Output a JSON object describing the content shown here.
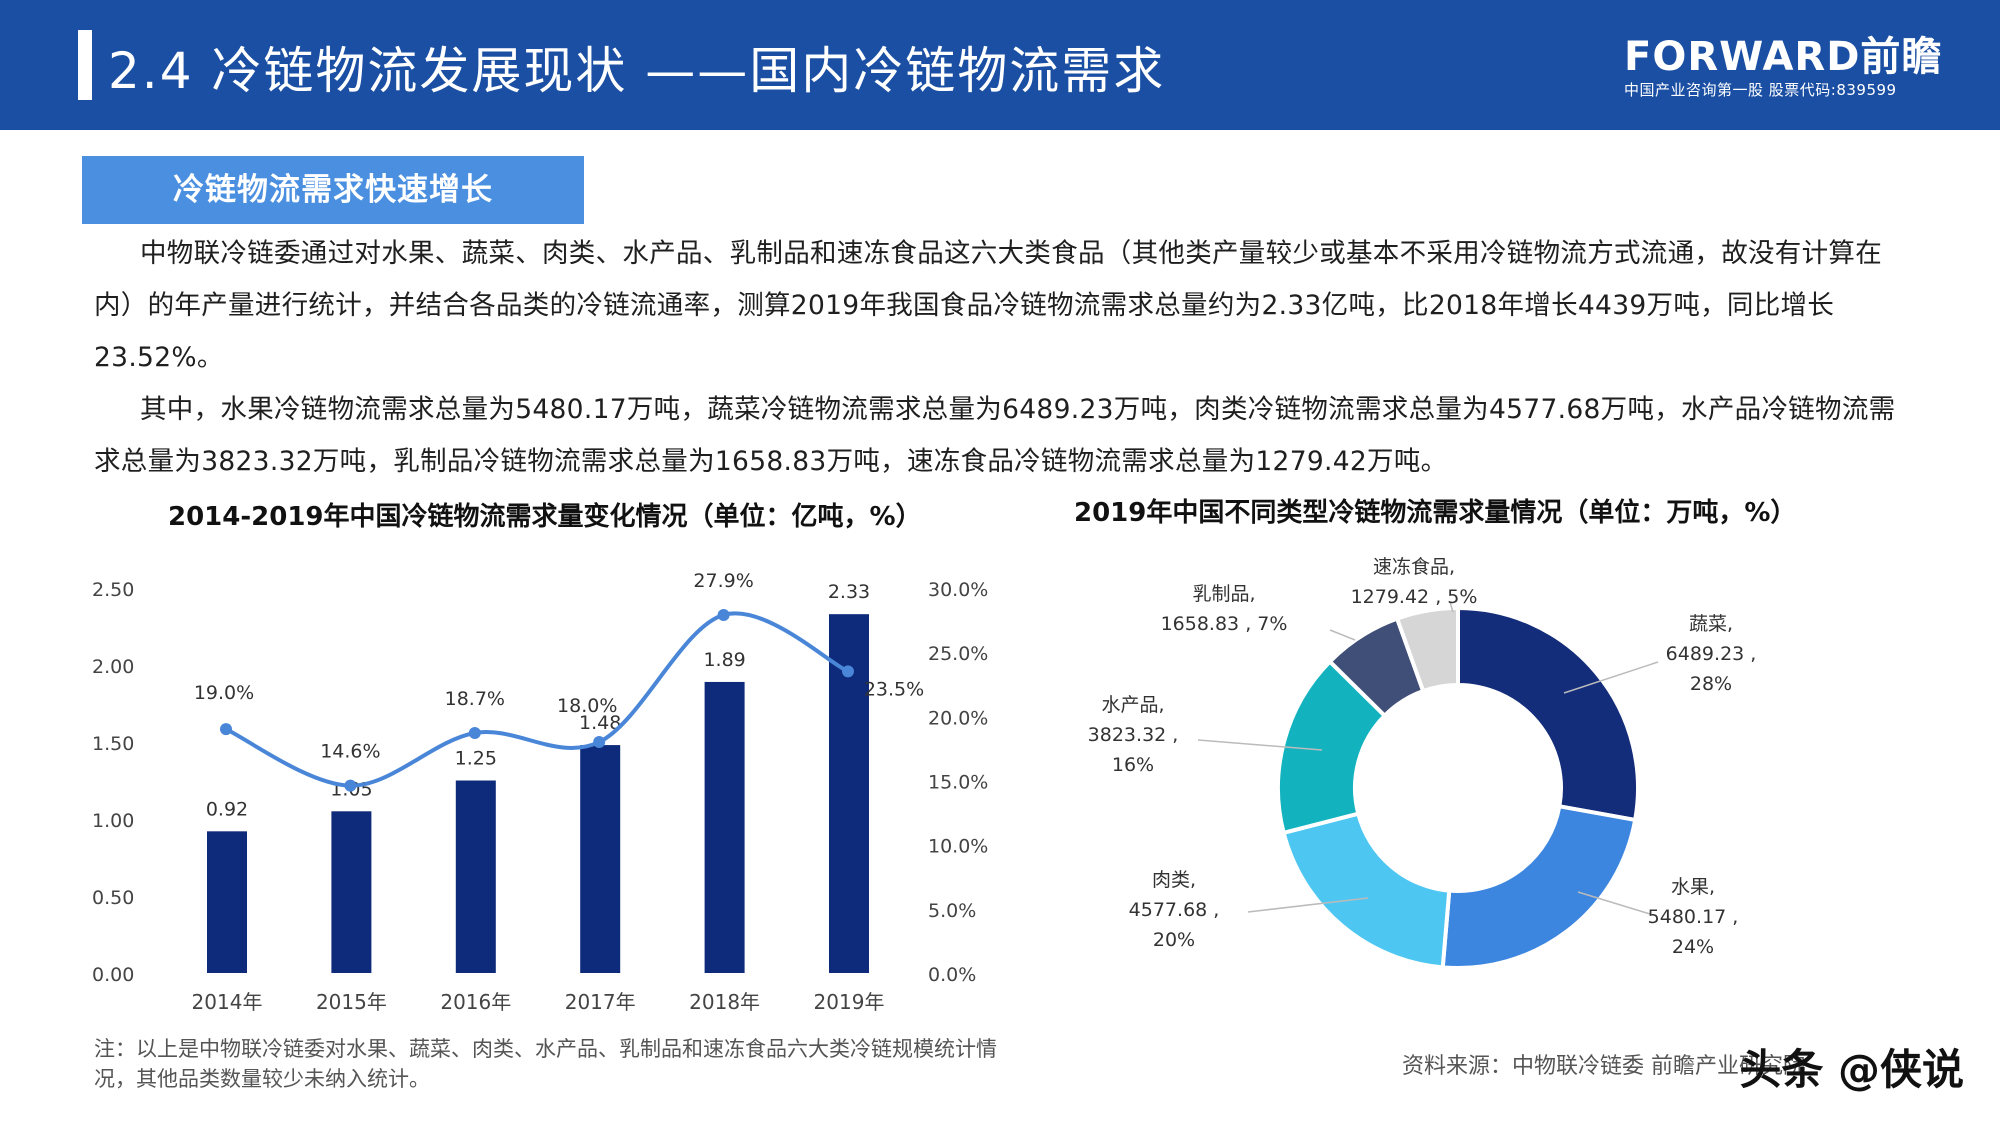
{
  "header": {
    "title": "2.4 冷链物流发展现状 ——国内冷链物流需求",
    "logo_brand": "FORWARD前瞻",
    "logo_sub": "中国产业咨询第一股 股票代码:839599"
  },
  "section_tag": "冷链物流需求快速增长",
  "paragraphs": {
    "p1": "中物联冷链委通过对水果、蔬菜、肉类、水产品、乳制品和速冻食品这六大类食品（其他类产量较少或基本不采用冷链物流方式流通，故没有计算在内）的年产量进行统计，并结合各品类的冷链流通率，测算2019年我国食品冷链物流需求总量约为2.33亿吨，比2018年增长4439万吨，同比增长23.52%。",
    "p2": "其中，水果冷链物流需求总量为5480.17万吨，蔬菜冷链物流需求总量为6489.23万吨，肉类冷链物流需求总量为4577.68万吨，水产品冷链物流需求总量为3823.32万吨，乳制品冷链物流需求总量为1658.83万吨，速冻食品冷链物流需求总量为1279.42万吨。"
  },
  "chart_data": [
    {
      "type": "bar",
      "title": "2014-2019年中国冷链物流需求量变化情况（单位：亿吨，%）",
      "categories": [
        "2014年",
        "2015年",
        "2016年",
        "2017年",
        "2018年",
        "2019年"
      ],
      "series": [
        {
          "type": "bar",
          "axis": "left",
          "values": [
            0.92,
            1.05,
            1.25,
            1.48,
            1.89,
            2.33
          ],
          "labels": [
            "0.92",
            "1.05",
            "1.25",
            "1.48",
            "1.89",
            "2.33"
          ]
        },
        {
          "type": "line",
          "axis": "right",
          "values": [
            19.0,
            14.6,
            18.7,
            18.0,
            27.9,
            23.5
          ],
          "labels": [
            "19.0%",
            "14.6%",
            "18.7%",
            "18.0%",
            "27.9%",
            "23.5%"
          ]
        }
      ],
      "y_left": {
        "min": 0,
        "max": 2.5,
        "ticks": [
          "0.00",
          "0.50",
          "1.00",
          "1.50",
          "2.00",
          "2.50"
        ]
      },
      "y_right": {
        "min": 0,
        "max": 30,
        "ticks": [
          "0.0%",
          "5.0%",
          "10.0%",
          "15.0%",
          "20.0%",
          "25.0%",
          "30.0%"
        ]
      },
      "grid": false,
      "colors": {
        "bar": "#0d2b7a",
        "line": "#4a86d8"
      }
    },
    {
      "type": "pie",
      "title": "2019年中国不同类型冷链物流需求量情况（单位：万吨，%）",
      "donut": true,
      "slices": [
        {
          "name": "蔬菜",
          "value": 6489.23,
          "percent": 28,
          "color": "#142d7a",
          "l1": "蔬菜,",
          "l2": "6489.23 ,",
          "l3": "28%"
        },
        {
          "name": "水果",
          "value": 5480.17,
          "percent": 24,
          "color": "#3d86e0",
          "l1": "水果,",
          "l2": "5480.17 ,",
          "l3": "24%"
        },
        {
          "name": "肉类",
          "value": 4577.68,
          "percent": 20,
          "color": "#4dc6f2",
          "l1": "肉类,",
          "l2": "4577.68 ,",
          "l3": "20%"
        },
        {
          "name": "水产品",
          "value": 3823.32,
          "percent": 16,
          "color": "#12b3bf",
          "l1": "水产品,",
          "l2": "3823.32 ,",
          "l3": "16%"
        },
        {
          "name": "乳制品",
          "value": 1658.83,
          "percent": 7,
          "color": "#404f78",
          "l1": "乳制品,",
          "l2": "1658.83 , 7%",
          "l3": ""
        },
        {
          "name": "速冻食品",
          "value": 1279.42,
          "percent": 5,
          "color": "#d6d6d6",
          "l1": "速冻食品,",
          "l2": "1279.42 , 5%",
          "l3": ""
        }
      ]
    }
  ],
  "note": "注：以上是中物联冷链委对水果、蔬菜、肉类、水产品、乳制品和速冻食品六大类冷链规模统计情况，其他品类数量较少未纳入统计。",
  "source": "资料来源：中物联冷链委 前瞻产业研究院",
  "watermark": "头条 @侠说"
}
